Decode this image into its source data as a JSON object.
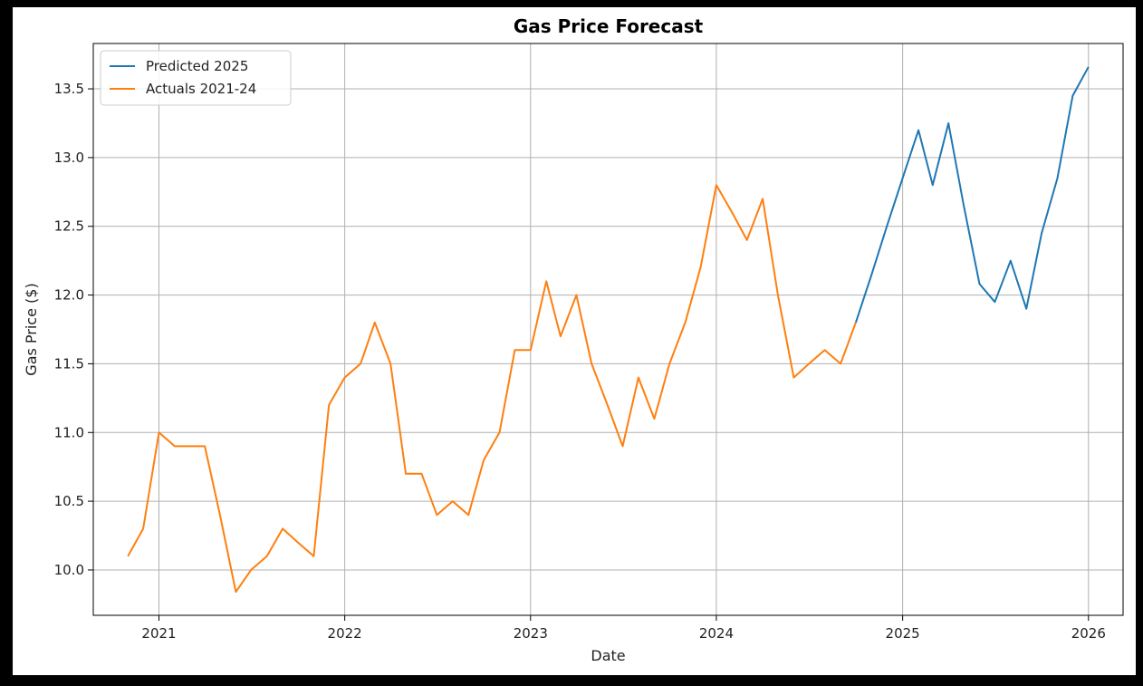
{
  "chart_data": {
    "type": "line",
    "title": "Gas Price Forecast",
    "xlabel": "Date",
    "ylabel": "Gas Price ($)",
    "xlim": [
      "2020-08-25",
      "2026-03-10"
    ],
    "ylim": [
      9.67,
      13.83
    ],
    "x_ticks": [
      "2021",
      "2022",
      "2023",
      "2024",
      "2025",
      "2026"
    ],
    "y_ticks": [
      10.0,
      10.5,
      11.0,
      11.5,
      12.0,
      12.5,
      13.0,
      13.5
    ],
    "grid": true,
    "legend_position": "upper-left",
    "series": [
      {
        "name": "Predicted 2025",
        "color": "#1f77b4",
        "points": [
          [
            "2024-10-01",
            11.8
          ],
          [
            "2024-11-01",
            12.15
          ],
          [
            "2024-12-01",
            12.5
          ],
          [
            "2025-01-01",
            12.85
          ],
          [
            "2025-02-01",
            13.2
          ],
          [
            "2025-03-01",
            12.8
          ],
          [
            "2025-04-01",
            13.25
          ],
          [
            "2025-05-01",
            12.65
          ],
          [
            "2025-06-01",
            12.08
          ],
          [
            "2025-07-01",
            11.95
          ],
          [
            "2025-08-01",
            12.25
          ],
          [
            "2025-09-01",
            11.9
          ],
          [
            "2025-10-01",
            12.45
          ],
          [
            "2025-11-01",
            12.85
          ],
          [
            "2025-12-01",
            13.45
          ],
          [
            "2026-01-01",
            13.66
          ]
        ]
      },
      {
        "name": "Actuals 2021-24",
        "color": "#ff7f0e",
        "points": [
          [
            "2020-11-01",
            10.1
          ],
          [
            "2020-12-01",
            10.3
          ],
          [
            "2021-01-01",
            11.0
          ],
          [
            "2021-02-01",
            10.9
          ],
          [
            "2021-03-01",
            10.9
          ],
          [
            "2021-04-01",
            10.9
          ],
          [
            "2021-05-01",
            10.4
          ],
          [
            "2021-06-01",
            9.84
          ],
          [
            "2021-07-01",
            10.0
          ],
          [
            "2021-08-01",
            10.1
          ],
          [
            "2021-09-01",
            10.3
          ],
          [
            "2021-10-01",
            10.2
          ],
          [
            "2021-11-01",
            10.1
          ],
          [
            "2021-12-01",
            11.2
          ],
          [
            "2022-01-01",
            11.4
          ],
          [
            "2022-02-01",
            11.5
          ],
          [
            "2022-03-01",
            11.8
          ],
          [
            "2022-04-01",
            11.5
          ],
          [
            "2022-05-01",
            10.7
          ],
          [
            "2022-06-01",
            10.7
          ],
          [
            "2022-07-01",
            10.4
          ],
          [
            "2022-08-01",
            10.5
          ],
          [
            "2022-09-01",
            10.4
          ],
          [
            "2022-10-01",
            10.8
          ],
          [
            "2022-11-01",
            11.0
          ],
          [
            "2022-12-01",
            11.6
          ],
          [
            "2023-01-01",
            11.6
          ],
          [
            "2023-02-01",
            12.1
          ],
          [
            "2023-03-01",
            11.7
          ],
          [
            "2023-04-01",
            12.0
          ],
          [
            "2023-05-01",
            11.5
          ],
          [
            "2023-06-01",
            11.2
          ],
          [
            "2023-07-01",
            10.9
          ],
          [
            "2023-08-01",
            11.4
          ],
          [
            "2023-09-01",
            11.1
          ],
          [
            "2023-10-01",
            11.5
          ],
          [
            "2023-11-01",
            11.8
          ],
          [
            "2023-12-01",
            12.2
          ],
          [
            "2024-01-01",
            12.8
          ],
          [
            "2024-02-01",
            12.6
          ],
          [
            "2024-03-01",
            12.4
          ],
          [
            "2024-04-01",
            12.7
          ],
          [
            "2024-05-01",
            12.0
          ],
          [
            "2024-06-01",
            11.4
          ],
          [
            "2024-07-01",
            11.5
          ],
          [
            "2024-08-01",
            11.6
          ],
          [
            "2024-09-01",
            11.5
          ],
          [
            "2024-10-01",
            11.8
          ]
        ]
      }
    ]
  }
}
